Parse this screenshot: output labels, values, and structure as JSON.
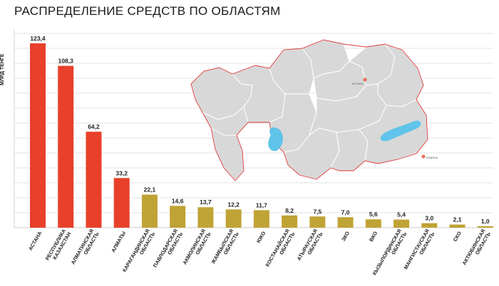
{
  "title": "РАСПРЕДЕЛЕНИЕ СРЕДСТВ ПО ОБЛАСТЯМ",
  "colors": {
    "highlight": "#e8402a",
    "regular": "#bfa335",
    "grid": "#c8c8c8"
  },
  "map": {
    "cities": [
      "АСТАНА",
      "АЛМАТЫ"
    ]
  },
  "chart_data": {
    "type": "bar",
    "title": "РАСПРЕДЕЛЕНИЕ СРЕДСТВ ПО ОБЛАСТЯМ",
    "ylabel": "МЛРД ТЕНГЕ",
    "xlabel": "",
    "ylim": [
      0,
      130
    ],
    "grid": true,
    "categories": [
      [
        "АСТАНА"
      ],
      [
        "РЕСПУБЛИКА",
        "КАЗАХСТАН"
      ],
      [
        "АЛМАТИНСКАЯ",
        "ОБЛАСТЬ"
      ],
      [
        "АЛМАТЫ"
      ],
      [
        "КАРАГАНДИНСКАЯ",
        "ОБЛАСТЬ"
      ],
      [
        "ПАВЛОДАРСКАЯ",
        "ОБЛАСТЬ"
      ],
      [
        "АКМОЛИНСКАЯ",
        "ОБЛАСТЬ"
      ],
      [
        "ЖАМБЫЛСКАЯ",
        "ОБЛАСТЬ"
      ],
      [
        "ЮКО"
      ],
      [
        "КОСТАНАЙСКАЯ",
        "ОБЛАСТЬ"
      ],
      [
        "АТЫРАУСКАЯ",
        "ОБЛАСТЬ"
      ],
      [
        "ЗКО"
      ],
      [
        "ВКО"
      ],
      [
        "КЫЗЫЛОРДИНСКАЯ",
        "ОБЛАСТЬ"
      ],
      [
        "МАНГИСТАУСКАЯ",
        "ОБЛАСТЬ"
      ],
      [
        "СКО"
      ],
      [
        "АКТЮБИНСКАЯ",
        "ОБЛАСТЬ"
      ]
    ],
    "values": [
      123.4,
      108.3,
      64.2,
      33.2,
      22.1,
      14.6,
      13.7,
      12.2,
      11.7,
      8.2,
      7.5,
      7.0,
      5.6,
      5.4,
      3.0,
      2.1,
      1.0
    ],
    "value_labels": [
      "123,4",
      "108,3",
      "64,2",
      "33,2",
      "22,1",
      "14,6",
      "13,7",
      "12,2",
      "11,7",
      "8,2",
      "7,5",
      "7,0",
      "5,6",
      "5,4",
      "3,0",
      "2,1",
      "1,0"
    ],
    "highlighted": [
      true,
      true,
      true,
      true,
      false,
      false,
      false,
      false,
      false,
      false,
      false,
      false,
      false,
      false,
      false,
      false,
      false
    ]
  }
}
